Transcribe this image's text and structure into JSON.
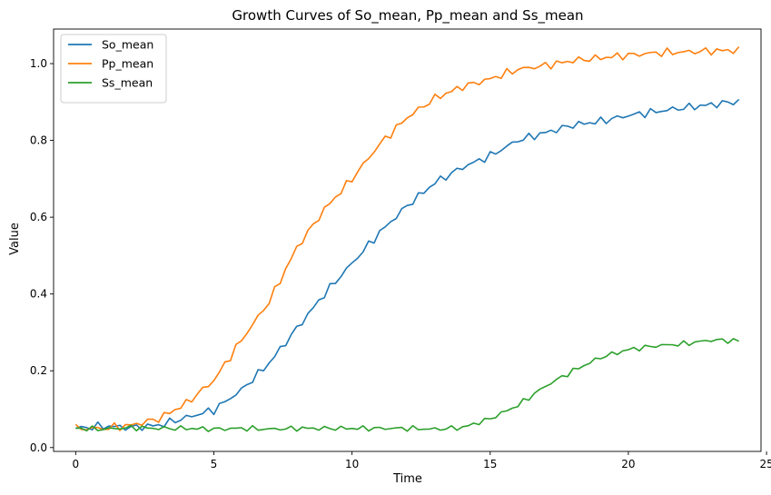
{
  "chart_data": {
    "type": "line",
    "title": "Growth Curves of So_mean, Pp_mean and Ss_mean",
    "xlabel": "Time",
    "ylabel": "Value",
    "xlim": [
      -0.8,
      24.8
    ],
    "ylim": [
      -0.01,
      1.09
    ],
    "xticks": [
      0,
      5,
      10,
      15,
      20,
      25
    ],
    "xtick_labels": [
      "0",
      "5",
      "10",
      "15",
      "20",
      "25"
    ],
    "yticks": [
      0.0,
      0.2,
      0.4,
      0.6,
      0.8,
      1.0
    ],
    "ytick_labels": [
      "0.0",
      "0.2",
      "0.4",
      "0.6",
      "0.8",
      "1.0"
    ],
    "grid": false,
    "legend_position": "upper-left",
    "x": [
      0,
      1,
      2,
      3,
      4,
      5,
      6,
      7,
      8,
      9,
      10,
      11,
      12,
      13,
      14,
      15,
      16,
      17,
      18,
      19,
      20,
      21,
      22,
      23,
      24
    ],
    "series": [
      {
        "name": "So_mean",
        "color": "#1f77b4",
        "values": [
          0.05,
          0.056,
          0.052,
          0.058,
          0.078,
          0.098,
          0.15,
          0.22,
          0.31,
          0.4,
          0.48,
          0.56,
          0.63,
          0.69,
          0.73,
          0.76,
          0.8,
          0.82,
          0.84,
          0.85,
          0.865,
          0.875,
          0.885,
          0.893,
          0.902
        ]
      },
      {
        "name": "Pp_mean",
        "color": "#ff7f0e",
        "values": [
          0.05,
          0.05,
          0.058,
          0.075,
          0.115,
          0.175,
          0.28,
          0.38,
          0.52,
          0.62,
          0.7,
          0.79,
          0.86,
          0.91,
          0.94,
          0.96,
          0.985,
          0.995,
          1.008,
          1.015,
          1.022,
          1.028,
          1.03,
          1.033,
          1.035
        ]
      },
      {
        "name": "Ss_mean",
        "color": "#2ca02c",
        "values": [
          0.05,
          0.048,
          0.052,
          0.05,
          0.05,
          0.048,
          0.05,
          0.048,
          0.05,
          0.05,
          0.05,
          0.05,
          0.05,
          0.048,
          0.052,
          0.075,
          0.11,
          0.16,
          0.2,
          0.235,
          0.255,
          0.265,
          0.27,
          0.28,
          0.278
        ]
      }
    ]
  }
}
